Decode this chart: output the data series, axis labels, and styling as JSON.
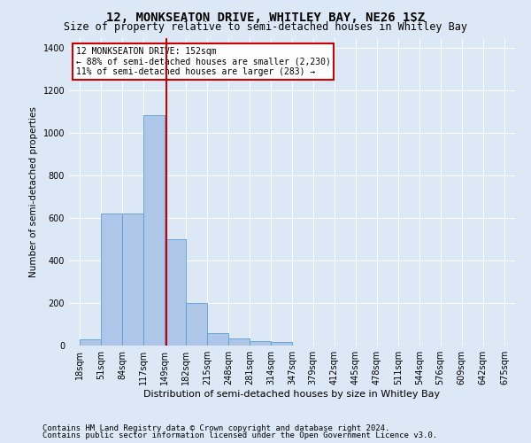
{
  "title": "12, MONKSEATON DRIVE, WHITLEY BAY, NE26 1SZ",
  "subtitle": "Size of property relative to semi-detached houses in Whitley Bay",
  "xlabel": "Distribution of semi-detached houses by size in Whitley Bay",
  "ylabel": "Number of semi-detached properties",
  "footer1": "Contains HM Land Registry data © Crown copyright and database right 2024.",
  "footer2": "Contains public sector information licensed under the Open Government Licence v3.0.",
  "annotation_title": "12 MONKSEATON DRIVE: 152sqm",
  "annotation_line1": "← 88% of semi-detached houses are smaller (2,230)",
  "annotation_line2": "11% of semi-detached houses are larger (283) →",
  "property_size": 152,
  "bar_edges": [
    18,
    51,
    84,
    117,
    149,
    182,
    215,
    248,
    281,
    314,
    347,
    379,
    412,
    445,
    478,
    511,
    544,
    576,
    609,
    642,
    675
  ],
  "bar_heights": [
    28,
    620,
    620,
    1085,
    500,
    200,
    60,
    32,
    20,
    15,
    0,
    0,
    0,
    0,
    0,
    0,
    0,
    0,
    0,
    0
  ],
  "bar_color": "#aec6e8",
  "bar_edge_color": "#5a9fd4",
  "vline_color": "#cc0000",
  "vline_x": 152,
  "ylim": [
    0,
    1450
  ],
  "yticks": [
    0,
    200,
    400,
    600,
    800,
    1000,
    1200,
    1400
  ],
  "background_color": "#dce8f5",
  "grid_color": "#ffffff",
  "annotation_box_color": "#ffffff",
  "annotation_box_edge": "#cc0000",
  "title_fontsize": 10,
  "subtitle_fontsize": 8.5,
  "axis_fontsize": 7,
  "ylabel_fontsize": 7.5,
  "xlabel_fontsize": 8,
  "footer_fontsize": 6.5,
  "annotation_fontsize": 7
}
